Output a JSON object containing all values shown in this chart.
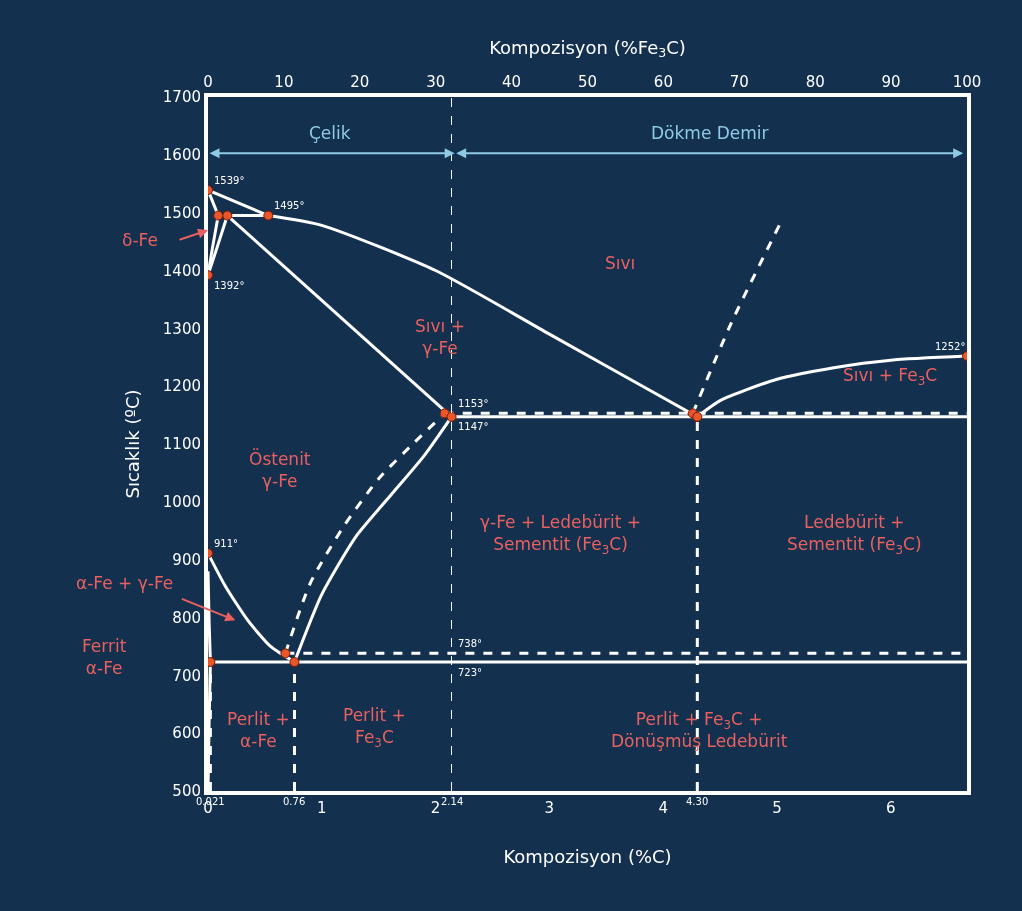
{
  "chart_data": {
    "type": "line",
    "xlabel": "Kompozisyon (%C)",
    "x2label": "Kompozisyon (%Fe$_{3}$C)",
    "ylabel": "Sıcaklık (ºC)",
    "xlim": [
      0,
      6.67
    ],
    "xticks": [
      0,
      1,
      2,
      3,
      4,
      5,
      6
    ],
    "x2lim": [
      0,
      100
    ],
    "x2ticks": [
      0,
      10,
      20,
      30,
      40,
      50,
      60,
      70,
      80,
      90,
      100
    ],
    "ylim": [
      500,
      1700
    ],
    "yticks": [
      500,
      600,
      700,
      800,
      900,
      1000,
      1100,
      1200,
      1300,
      1400,
      1500,
      1600,
      1700
    ],
    "series": [
      {
        "color": "#ffffff",
        "line_style": "solid",
        "x": [
          0,
          0.09
        ],
        "values": [
          1539,
          1495
        ]
      },
      {
        "color": "#ffffff",
        "line_style": "solid",
        "x": [
          0.53,
          1,
          2,
          3,
          4,
          4.3
        ],
        "values": [
          1495,
          1478,
          1400,
          1290,
          1180,
          1147
        ]
      },
      {
        "color": "#ffffff",
        "line_style": "solid",
        "x": [
          0,
          0.53
        ],
        "values": [
          1539,
          1495
        ]
      },
      {
        "color": "#ffffff",
        "line_style": "solid",
        "x": [
          0.09,
          0.53
        ],
        "values": [
          1495,
          1495
        ]
      },
      {
        "color": "#ffffff",
        "line_style": "solid",
        "x": [
          0,
          0.04,
          0.09
        ],
        "values": [
          1392,
          1440,
          1495
        ]
      },
      {
        "color": "#ffffff",
        "line_style": "solid",
        "x": [
          0,
          0.08,
          0.17
        ],
        "values": [
          1392,
          1440,
          1495
        ]
      },
      {
        "color": "#ffffff",
        "line_style": "solid",
        "x": [
          0.17,
          2.14
        ],
        "values": [
          1495,
          1147
        ]
      },
      {
        "color": "#ffffff",
        "line_style": "solid",
        "x": [
          4.3,
          4.5,
          5,
          5.5,
          6,
          6.67
        ],
        "values": [
          1147,
          1175,
          1212,
          1232,
          1245,
          1252
        ]
      },
      {
        "color": "#ffffff",
        "line_style": "solid",
        "x": [
          2.14,
          6.67
        ],
        "values": [
          1147,
          1147
        ]
      },
      {
        "color": "#ffffff",
        "line_style": "dashed",
        "x": [
          2.08,
          6.67
        ],
        "values": [
          1153,
          1153
        ]
      },
      {
        "color": "#ffffff",
        "line_style": "dashed",
        "x": [
          4.26,
          4.6,
          5.02
        ],
        "values": [
          1153,
          1310,
          1478
        ]
      },
      {
        "color": "#ffffff",
        "line_style": "solid",
        "x": [
          0.76,
          1.0,
          1.3,
          1.6,
          1.9,
          2.14
        ],
        "values": [
          723,
          840,
          940,
          1010,
          1080,
          1147
        ]
      },
      {
        "color": "#ffffff",
        "line_style": "dashed",
        "x": [
          0.68,
          0.9,
          1.2,
          1.5,
          1.8,
          2.08
        ],
        "values": [
          738,
          860,
          960,
          1040,
          1100,
          1153
        ]
      },
      {
        "color": "#ffffff",
        "line_style": "solid",
        "x": [
          0,
          0.15,
          0.35,
          0.55,
          0.76
        ],
        "values": [
          911,
          855,
          795,
          750,
          723
        ]
      },
      {
        "color": "#ffffff",
        "line_style": "dashed",
        "x": [
          0.68,
          6.67
        ],
        "values": [
          738,
          738
        ]
      },
      {
        "color": "#ffffff",
        "line_style": "solid",
        "x": [
          0.021,
          6.67
        ],
        "values": [
          723,
          723
        ]
      },
      {
        "color": "#ffffff",
        "line_style": "solid",
        "x": [
          0.021,
          0.01,
          0
        ],
        "values": [
          723,
          620,
          500
        ]
      },
      {
        "color": "#ffffff",
        "line_style": "solid",
        "x": [
          0,
          0.01,
          0.021
        ],
        "values": [
          880,
          790,
          723
        ]
      },
      {
        "color": "#ffffff",
        "line_style": "dashed",
        "x": [
          0.021,
          0.021
        ],
        "values": [
          500,
          723
        ]
      },
      {
        "color": "#ffffff",
        "line_style": "dashed",
        "x": [
          0.76,
          0.76
        ],
        "values": [
          500,
          723
        ]
      },
      {
        "color": "#ffffff",
        "line_style": "dashed",
        "x": [
          4.3,
          4.3
        ],
        "values": [
          500,
          1147
        ]
      },
      {
        "type": "scatter",
        "color": "#e8562a",
        "marker": "circle",
        "x": [
          0,
          0.09,
          0.17,
          0.53,
          0,
          2.08,
          2.14,
          4.26,
          4.3,
          6.67,
          0,
          0.68,
          0.76,
          0.021
        ],
        "values": [
          1539,
          1495,
          1495,
          1495,
          1392,
          1153,
          1147,
          1153,
          1147,
          1252,
          911,
          738,
          723,
          723
        ]
      }
    ],
    "ref_lines": [
      {
        "axis": "x",
        "value": 2.14,
        "label": "2.14",
        "line_style": "dashed",
        "color": "#ffffff"
      }
    ],
    "annotations": [
      {
        "text": "1539°",
        "x": 0,
        "y": 1539
      },
      {
        "text": "1495°",
        "x": 0.53,
        "y": 1495
      },
      {
        "text": "1392°",
        "x": 0,
        "y": 1392
      },
      {
        "text": "1252°",
        "x": 6.67,
        "y": 1252
      },
      {
        "text": "1153°",
        "x": 2.14,
        "y": 1153
      },
      {
        "text": "1147°",
        "x": 2.14,
        "y": 1147
      },
      {
        "text": "911°",
        "x": 0,
        "y": 911
      },
      {
        "text": "738°",
        "x": 2.14,
        "y": 738
      },
      {
        "text": "723°",
        "x": 2.14,
        "y": 723
      },
      {
        "text": "0.021",
        "x": 0.021,
        "y": 500
      },
      {
        "text": "0.76",
        "x": 0.76,
        "y": 500
      },
      {
        "text": "4.30",
        "x": 4.3,
        "y": 500
      },
      "δ-Fe",
      "α-Fe + γ-Fe",
      "Ferrit\nα-Fe",
      "Sıvı",
      "Sıvı +\nγ-Fe",
      "Sıvı + Fe$_{3}$C",
      "Östenit\nγ-Fe",
      "γ-Fe + Ledebürit +\nSementit (Fe$_{3}$C)",
      "Ledebürit +\nSementit (Fe$_{3}$C)",
      "Perlit +\nα-Fe",
      "Perlit +\nFe$_{3}$C",
      "Perlit + Fe$_{3}$C +\nDönüşmüş Ledebürit",
      "Çelik",
      "Dökme Demir"
    ]
  }
}
